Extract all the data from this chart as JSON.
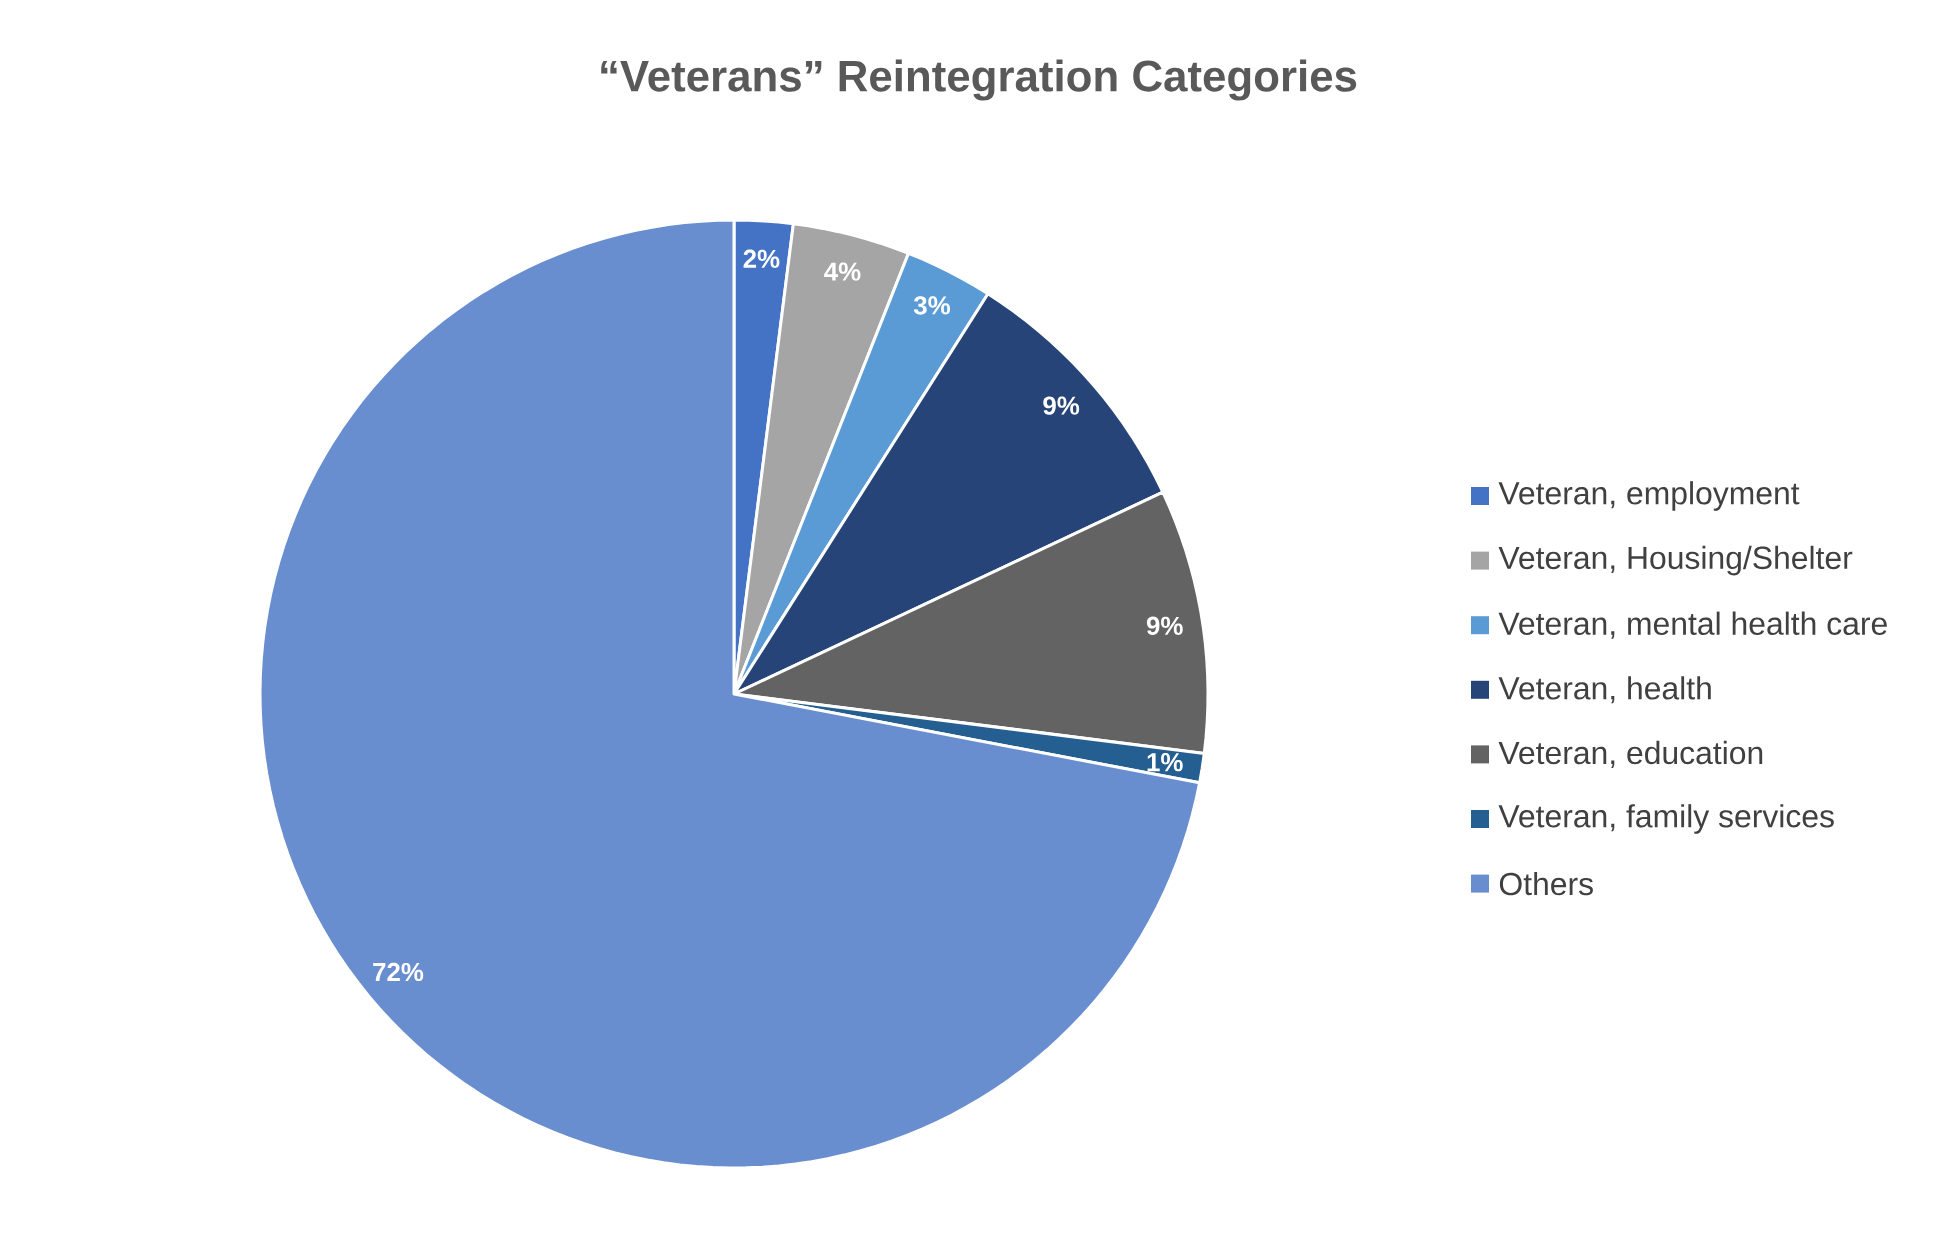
{
  "chart_data": {
    "type": "pie",
    "title": "“Veterans” Reintegration Categories",
    "categories": [
      "Veteran, employment",
      "Veteran, Housing/Shelter",
      "Veteran, mental health care",
      "Veteran, health",
      "Veteran, education",
      "Veteran, family services",
      "Others"
    ],
    "values": [
      2,
      4,
      3,
      9,
      9,
      1,
      72
    ],
    "value_labels": [
      "2%",
      "4%",
      "3%",
      "9%",
      "9%",
      "1%",
      "72%"
    ],
    "colors": [
      "#4472c4",
      "#a5a5a5",
      "#5b9bd5",
      "#264478",
      "#636363",
      "#255e91",
      "#698ed0"
    ],
    "legend": "right"
  }
}
